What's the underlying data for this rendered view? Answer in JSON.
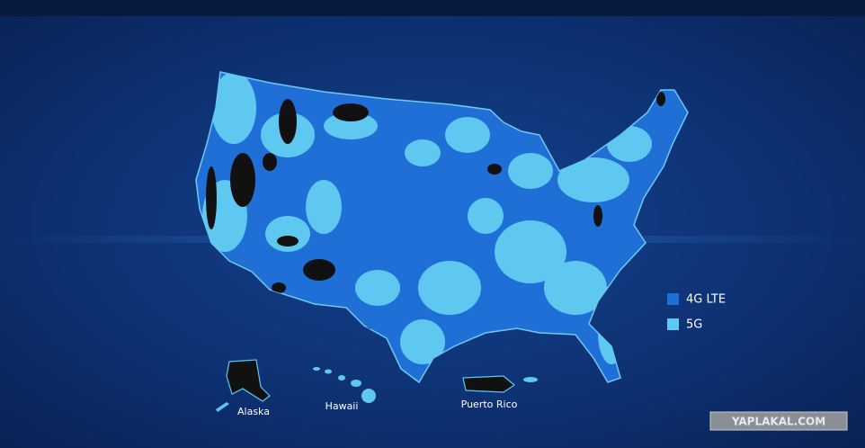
{
  "legend": {
    "items": [
      {
        "label": "4G LTE",
        "color": "#1f6fd6"
      },
      {
        "label": "5G",
        "color": "#5ec8f0"
      }
    ]
  },
  "places": {
    "alaska": "Alaska",
    "hawaii": "Hawaii",
    "puerto_rico": "Puerto Rico"
  },
  "watermark": "YAPLAKAL.COM"
}
